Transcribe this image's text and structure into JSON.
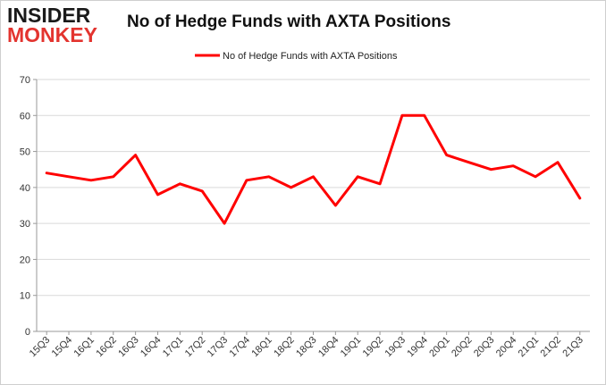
{
  "branding": {
    "logo_line1": "INSIDER",
    "logo_line2": "MONKEY"
  },
  "chart_data": {
    "type": "line",
    "title": "No of Hedge Funds with AXTA Positions",
    "categories": [
      "15Q3",
      "15Q4",
      "16Q1",
      "16Q2",
      "16Q3",
      "16Q4",
      "17Q1",
      "17Q2",
      "17Q3",
      "17Q4",
      "18Q1",
      "18Q2",
      "18Q3",
      "18Q4",
      "19Q1",
      "19Q2",
      "19Q3",
      "19Q4",
      "20Q1",
      "20Q2",
      "20Q3",
      "20Q4",
      "21Q1",
      "21Q2",
      "21Q3"
    ],
    "series": [
      {
        "name": "No of Hedge Funds with AXTA Positions",
        "color": "#ff0000",
        "values": [
          44,
          43,
          42,
          43,
          49,
          38,
          41,
          39,
          30,
          42,
          43,
          40,
          43,
          35,
          43,
          41,
          60,
          60,
          49,
          47,
          45,
          46,
          43,
          47,
          37
        ]
      }
    ],
    "ylim": [
      0,
      70
    ],
    "yticks": [
      0,
      10,
      20,
      30,
      40,
      50,
      60,
      70
    ],
    "grid": true,
    "legend_position": "top-center",
    "colors": {
      "line": "#ff0000",
      "grid": "#d9d9d9",
      "axis": "#999999",
      "logo_dark": "#1a1a1a",
      "logo_accent": "#e3342f"
    }
  }
}
